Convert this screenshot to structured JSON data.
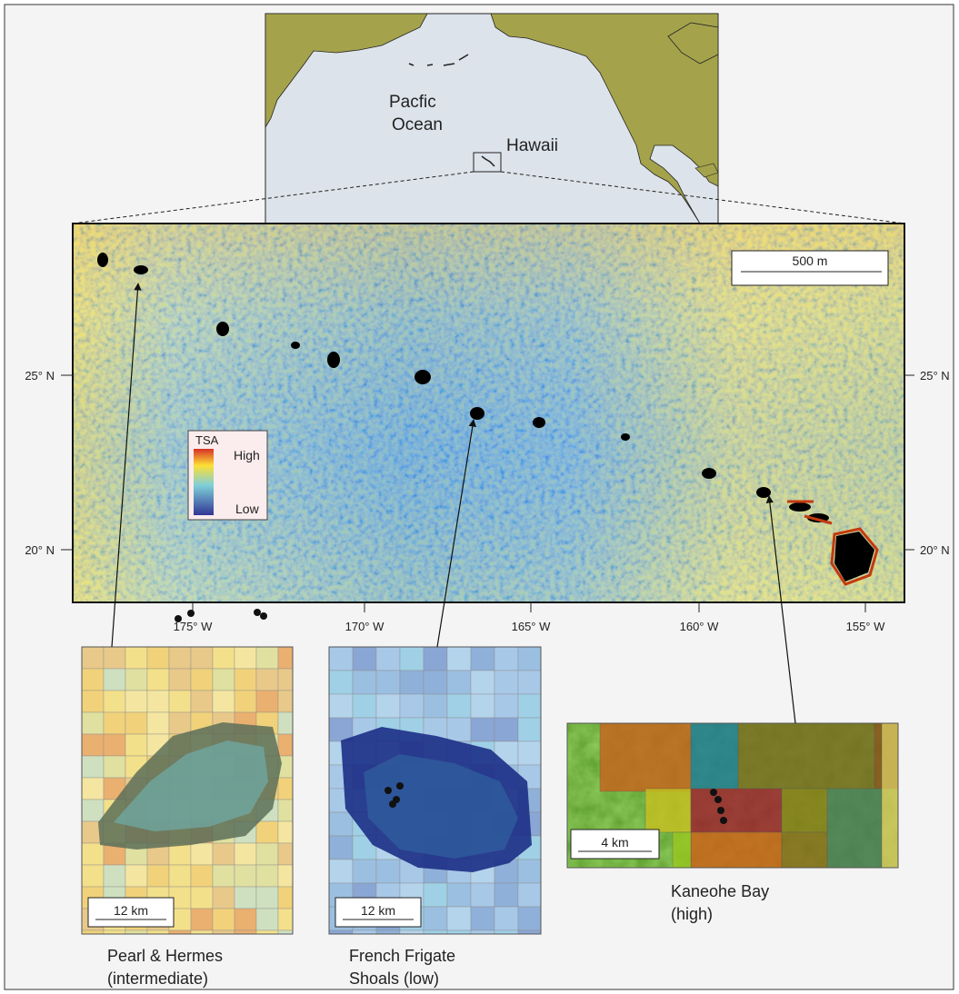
{
  "overview_map": {
    "ocean_label": [
      "Pacfic",
      "Ocean"
    ],
    "region_label": "Hawaii"
  },
  "main_map": {
    "scale_bar": "500 m",
    "legend": {
      "title": "TSA",
      "high": "High",
      "low": "Low"
    },
    "lat_labels": [
      "25° N",
      "20° N"
    ],
    "lon_labels": [
      "175° W",
      "170° W",
      "165° W",
      "160° W",
      "155° W"
    ]
  },
  "insets": [
    {
      "name_lines": [
        "Pearl & Hermes",
        "(intermediate)"
      ],
      "scale_bar": "12 km"
    },
    {
      "name_lines": [
        "French Frigate",
        "Shoals (low)"
      ],
      "scale_bar": "12 km"
    },
    {
      "name_lines": [
        "Kaneohe Bay",
        "(high)"
      ],
      "scale_bar": "4 km"
    }
  ]
}
